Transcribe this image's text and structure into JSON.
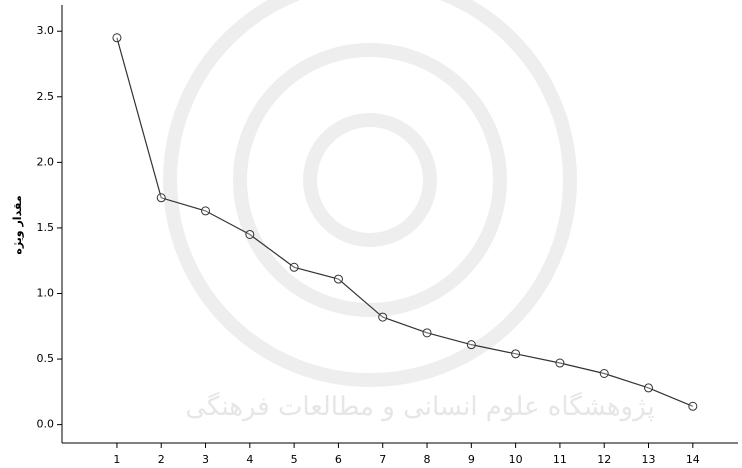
{
  "chart_data": {
    "type": "line",
    "y_label": "مقدار ویژه",
    "watermark": "پژوهشگاه علوم انسانی و مطالعات فرهنگی",
    "x": [
      1,
      2,
      3,
      4,
      5,
      6,
      7,
      8,
      9,
      10,
      11,
      12,
      13,
      14
    ],
    "series": [
      {
        "color": "#333333",
        "values": [
          2.95,
          1.73,
          1.63,
          1.45,
          1.2,
          1.11,
          0.82,
          0.7,
          0.61,
          0.54,
          0.47,
          0.39,
          0.28,
          0.14
        ]
      }
    ],
    "xlim": [
      -0.24,
      15.02
    ],
    "xticks": [
      1,
      2,
      3,
      4,
      5,
      6,
      7,
      8,
      9,
      10,
      11,
      12,
      13,
      14
    ],
    "ylim": [
      -0.14,
      3.2
    ],
    "yticks": [
      {
        "value": 0,
        "label": "0.0"
      },
      {
        "value": 0.5,
        "label": "0.5"
      },
      {
        "value": 1,
        "label": "1.0"
      },
      {
        "value": 1.5,
        "label": "1.5"
      },
      {
        "value": 2,
        "label": "2.0"
      },
      {
        "value": 2.5,
        "label": "2.5"
      },
      {
        "value": 3,
        "label": "3.0"
      }
    ],
    "marker": "open-circle"
  }
}
